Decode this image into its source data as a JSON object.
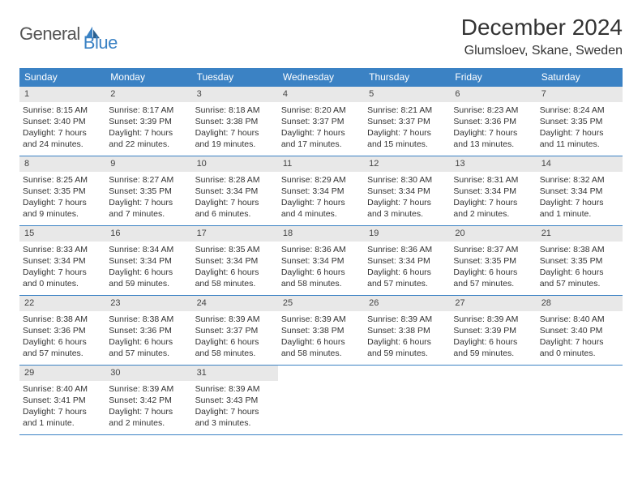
{
  "logo": {
    "text1": "General",
    "text2": "Blue"
  },
  "title": "December 2024",
  "location": "Glumsloev, Skane, Sweden",
  "day_headers": [
    "Sunday",
    "Monday",
    "Tuesday",
    "Wednesday",
    "Thursday",
    "Friday",
    "Saturday"
  ],
  "colors": {
    "header_bg": "#3b82c4",
    "header_text": "#ffffff",
    "daynum_bg": "#e8e8e8",
    "border": "#3b82c4",
    "text": "#333333",
    "logo_blue": "#3b82c4",
    "logo_gray": "#555555"
  },
  "typography": {
    "title_fontsize": 28,
    "location_fontsize": 16,
    "header_fontsize": 12,
    "cell_fontsize": 10.5,
    "logo_fontsize": 22
  },
  "weeks": [
    [
      {
        "n": "1",
        "sr": "Sunrise: 8:15 AM",
        "ss": "Sunset: 3:40 PM",
        "d1": "Daylight: 7 hours",
        "d2": "and 24 minutes."
      },
      {
        "n": "2",
        "sr": "Sunrise: 8:17 AM",
        "ss": "Sunset: 3:39 PM",
        "d1": "Daylight: 7 hours",
        "d2": "and 22 minutes."
      },
      {
        "n": "3",
        "sr": "Sunrise: 8:18 AM",
        "ss": "Sunset: 3:38 PM",
        "d1": "Daylight: 7 hours",
        "d2": "and 19 minutes."
      },
      {
        "n": "4",
        "sr": "Sunrise: 8:20 AM",
        "ss": "Sunset: 3:37 PM",
        "d1": "Daylight: 7 hours",
        "d2": "and 17 minutes."
      },
      {
        "n": "5",
        "sr": "Sunrise: 8:21 AM",
        "ss": "Sunset: 3:37 PM",
        "d1": "Daylight: 7 hours",
        "d2": "and 15 minutes."
      },
      {
        "n": "6",
        "sr": "Sunrise: 8:23 AM",
        "ss": "Sunset: 3:36 PM",
        "d1": "Daylight: 7 hours",
        "d2": "and 13 minutes."
      },
      {
        "n": "7",
        "sr": "Sunrise: 8:24 AM",
        "ss": "Sunset: 3:35 PM",
        "d1": "Daylight: 7 hours",
        "d2": "and 11 minutes."
      }
    ],
    [
      {
        "n": "8",
        "sr": "Sunrise: 8:25 AM",
        "ss": "Sunset: 3:35 PM",
        "d1": "Daylight: 7 hours",
        "d2": "and 9 minutes."
      },
      {
        "n": "9",
        "sr": "Sunrise: 8:27 AM",
        "ss": "Sunset: 3:35 PM",
        "d1": "Daylight: 7 hours",
        "d2": "and 7 minutes."
      },
      {
        "n": "10",
        "sr": "Sunrise: 8:28 AM",
        "ss": "Sunset: 3:34 PM",
        "d1": "Daylight: 7 hours",
        "d2": "and 6 minutes."
      },
      {
        "n": "11",
        "sr": "Sunrise: 8:29 AM",
        "ss": "Sunset: 3:34 PM",
        "d1": "Daylight: 7 hours",
        "d2": "and 4 minutes."
      },
      {
        "n": "12",
        "sr": "Sunrise: 8:30 AM",
        "ss": "Sunset: 3:34 PM",
        "d1": "Daylight: 7 hours",
        "d2": "and 3 minutes."
      },
      {
        "n": "13",
        "sr": "Sunrise: 8:31 AM",
        "ss": "Sunset: 3:34 PM",
        "d1": "Daylight: 7 hours",
        "d2": "and 2 minutes."
      },
      {
        "n": "14",
        "sr": "Sunrise: 8:32 AM",
        "ss": "Sunset: 3:34 PM",
        "d1": "Daylight: 7 hours",
        "d2": "and 1 minute."
      }
    ],
    [
      {
        "n": "15",
        "sr": "Sunrise: 8:33 AM",
        "ss": "Sunset: 3:34 PM",
        "d1": "Daylight: 7 hours",
        "d2": "and 0 minutes."
      },
      {
        "n": "16",
        "sr": "Sunrise: 8:34 AM",
        "ss": "Sunset: 3:34 PM",
        "d1": "Daylight: 6 hours",
        "d2": "and 59 minutes."
      },
      {
        "n": "17",
        "sr": "Sunrise: 8:35 AM",
        "ss": "Sunset: 3:34 PM",
        "d1": "Daylight: 6 hours",
        "d2": "and 58 minutes."
      },
      {
        "n": "18",
        "sr": "Sunrise: 8:36 AM",
        "ss": "Sunset: 3:34 PM",
        "d1": "Daylight: 6 hours",
        "d2": "and 58 minutes."
      },
      {
        "n": "19",
        "sr": "Sunrise: 8:36 AM",
        "ss": "Sunset: 3:34 PM",
        "d1": "Daylight: 6 hours",
        "d2": "and 57 minutes."
      },
      {
        "n": "20",
        "sr": "Sunrise: 8:37 AM",
        "ss": "Sunset: 3:35 PM",
        "d1": "Daylight: 6 hours",
        "d2": "and 57 minutes."
      },
      {
        "n": "21",
        "sr": "Sunrise: 8:38 AM",
        "ss": "Sunset: 3:35 PM",
        "d1": "Daylight: 6 hours",
        "d2": "and 57 minutes."
      }
    ],
    [
      {
        "n": "22",
        "sr": "Sunrise: 8:38 AM",
        "ss": "Sunset: 3:36 PM",
        "d1": "Daylight: 6 hours",
        "d2": "and 57 minutes."
      },
      {
        "n": "23",
        "sr": "Sunrise: 8:38 AM",
        "ss": "Sunset: 3:36 PM",
        "d1": "Daylight: 6 hours",
        "d2": "and 57 minutes."
      },
      {
        "n": "24",
        "sr": "Sunrise: 8:39 AM",
        "ss": "Sunset: 3:37 PM",
        "d1": "Daylight: 6 hours",
        "d2": "and 58 minutes."
      },
      {
        "n": "25",
        "sr": "Sunrise: 8:39 AM",
        "ss": "Sunset: 3:38 PM",
        "d1": "Daylight: 6 hours",
        "d2": "and 58 minutes."
      },
      {
        "n": "26",
        "sr": "Sunrise: 8:39 AM",
        "ss": "Sunset: 3:38 PM",
        "d1": "Daylight: 6 hours",
        "d2": "and 59 minutes."
      },
      {
        "n": "27",
        "sr": "Sunrise: 8:39 AM",
        "ss": "Sunset: 3:39 PM",
        "d1": "Daylight: 6 hours",
        "d2": "and 59 minutes."
      },
      {
        "n": "28",
        "sr": "Sunrise: 8:40 AM",
        "ss": "Sunset: 3:40 PM",
        "d1": "Daylight: 7 hours",
        "d2": "and 0 minutes."
      }
    ],
    [
      {
        "n": "29",
        "sr": "Sunrise: 8:40 AM",
        "ss": "Sunset: 3:41 PM",
        "d1": "Daylight: 7 hours",
        "d2": "and 1 minute."
      },
      {
        "n": "30",
        "sr": "Sunrise: 8:39 AM",
        "ss": "Sunset: 3:42 PM",
        "d1": "Daylight: 7 hours",
        "d2": "and 2 minutes."
      },
      {
        "n": "31",
        "sr": "Sunrise: 8:39 AM",
        "ss": "Sunset: 3:43 PM",
        "d1": "Daylight: 7 hours",
        "d2": "and 3 minutes."
      },
      {
        "empty": true
      },
      {
        "empty": true
      },
      {
        "empty": true
      },
      {
        "empty": true
      }
    ]
  ]
}
